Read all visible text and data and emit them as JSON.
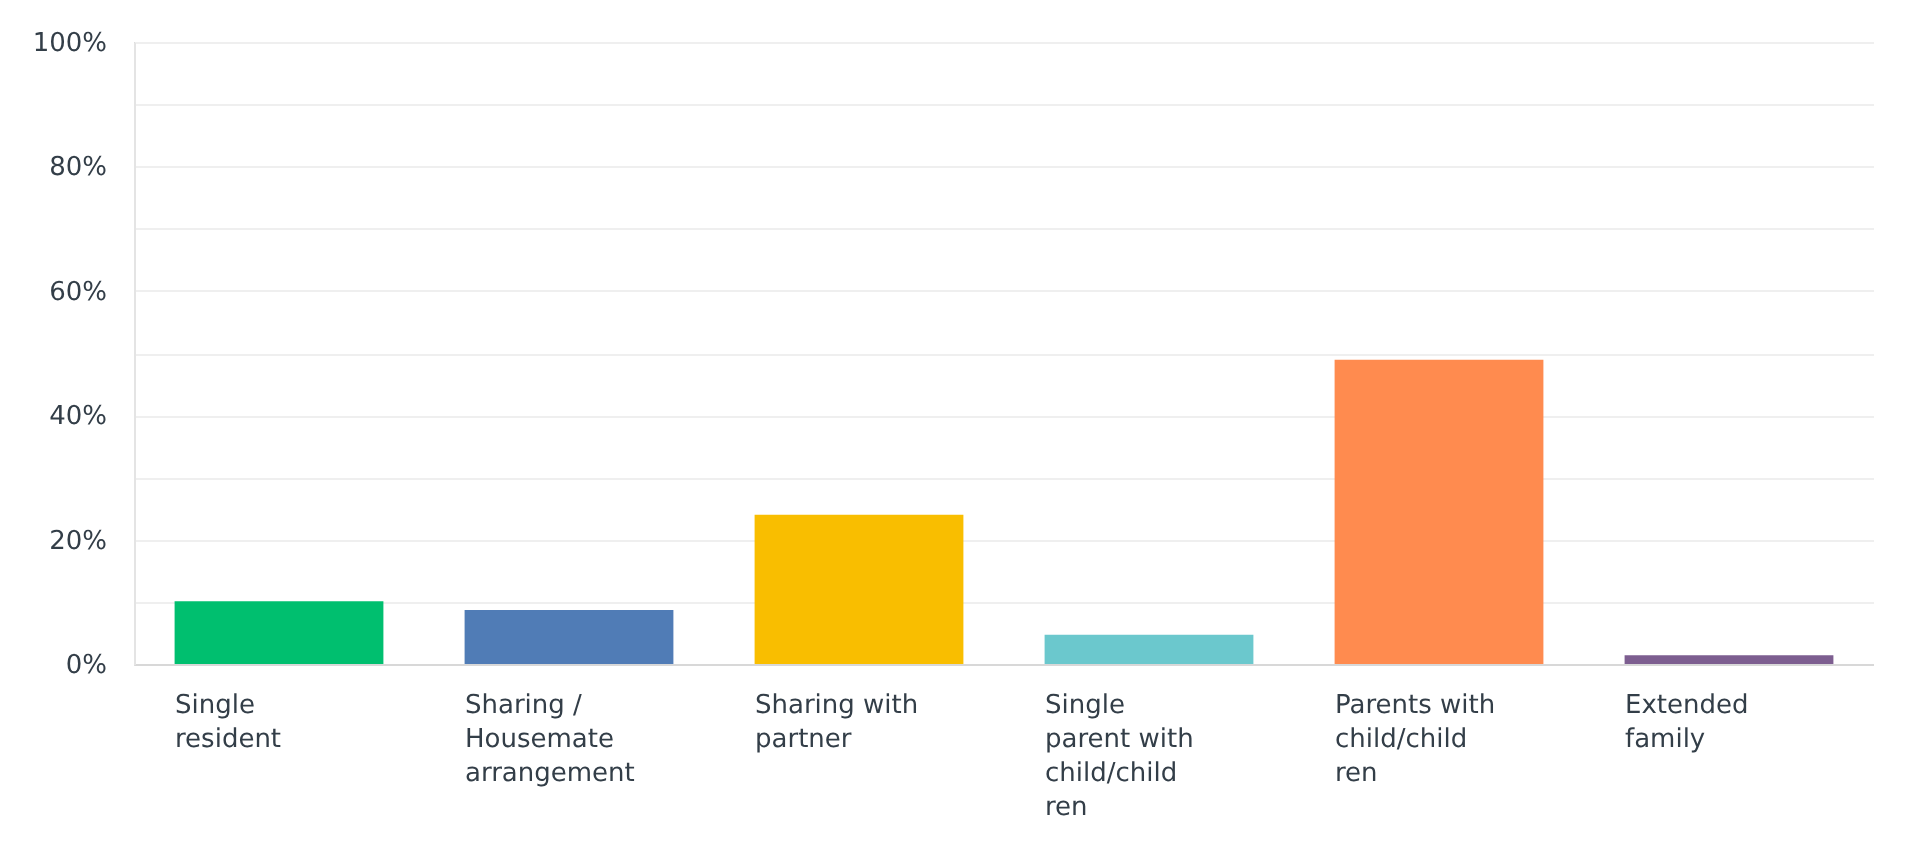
{
  "chart_data": {
    "type": "bar",
    "categories": [
      "Single resident",
      "Sharing / Housemate arrangement",
      "Sharing with partner",
      "Single parent with child/children",
      "Parents with child/children",
      "Extended family"
    ],
    "values": [
      10.1,
      8.7,
      24.0,
      4.7,
      48.9,
      1.4
    ],
    "colors": [
      "#00bf6f",
      "#507cb6",
      "#f9be00",
      "#6bc8cd",
      "#ff8b4f",
      "#7d5e90"
    ],
    "ylim": [
      0,
      100
    ],
    "yticks": [
      {
        "value": 0,
        "label": "0%"
      },
      {
        "value": 10,
        "label": null
      },
      {
        "value": 20,
        "label": "20%"
      },
      {
        "value": 30,
        "label": null
      },
      {
        "value": 40,
        "label": "40%"
      },
      {
        "value": 50,
        "label": null
      },
      {
        "value": 60,
        "label": "60%"
      },
      {
        "value": 70,
        "label": null
      },
      {
        "value": 80,
        "label": "80%"
      },
      {
        "value": 90,
        "label": null
      },
      {
        "value": 100,
        "label": "100%"
      }
    ],
    "grid": "y"
  }
}
